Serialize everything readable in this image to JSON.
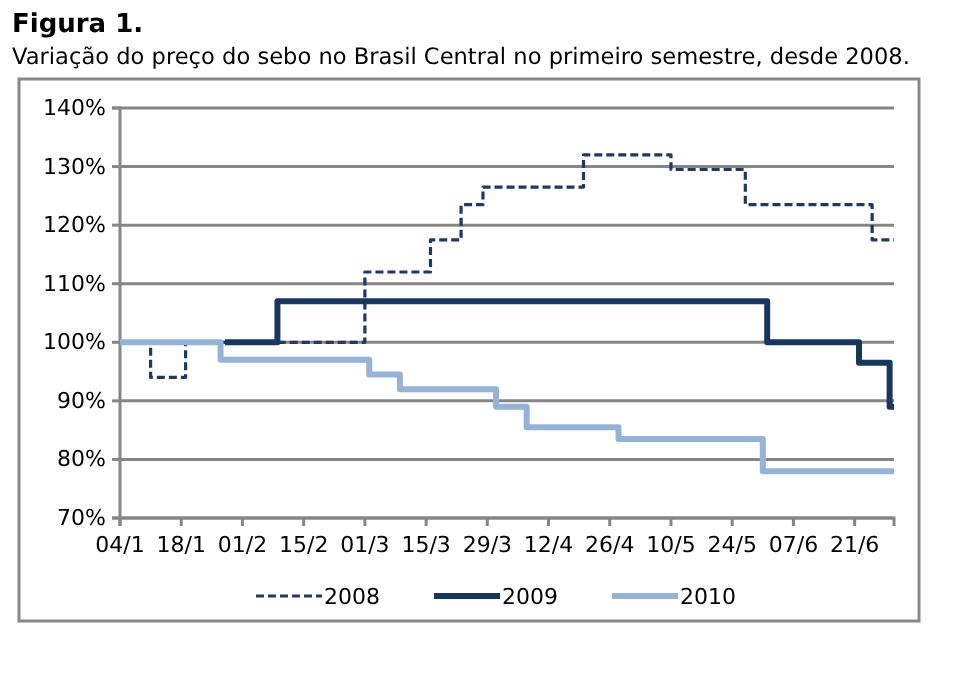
{
  "chart_data": {
    "type": "step",
    "title": "Figura 1.",
    "subtitle": "Variação do preço do sebo no Brasil Central no primeiro semestre, desde 2008.",
    "xlim": [
      "--01-04",
      "--06-30"
    ],
    "xticks": [
      {
        "value": "--01-04",
        "label": "04/1"
      },
      {
        "value": "--01-18",
        "label": "18/1"
      },
      {
        "value": "--02-01",
        "label": "01/2"
      },
      {
        "value": "--02-15",
        "label": "15/2"
      },
      {
        "value": "--03-01",
        "label": "01/3"
      },
      {
        "value": "--03-15",
        "label": "15/3"
      },
      {
        "value": "--03-29",
        "label": "29/3"
      },
      {
        "value": "--04-12",
        "label": "12/4"
      },
      {
        "value": "--04-26",
        "label": "26/4"
      },
      {
        "value": "--05-10",
        "label": "10/5"
      },
      {
        "value": "--05-24",
        "label": "24/5"
      },
      {
        "value": "--06-07",
        "label": "07/6"
      },
      {
        "value": "--06-21",
        "label": "21/6"
      }
    ],
    "ylim": [
      70,
      140
    ],
    "yticks": [
      {
        "value": 70,
        "label": "70%"
      },
      {
        "value": 80,
        "label": "80%"
      },
      {
        "value": 90,
        "label": "90%"
      },
      {
        "value": 100,
        "label": "100%"
      },
      {
        "value": 110,
        "label": "110%"
      },
      {
        "value": 120,
        "label": "120%"
      },
      {
        "value": 130,
        "label": "130%"
      },
      {
        "value": 140,
        "label": "140%"
      }
    ],
    "grid": "y",
    "legend": "bottom",
    "series": [
      {
        "name": "2008",
        "color": "#1f3864",
        "line_style": "dashed",
        "x": [
          "--01-04",
          "--01-11",
          "--01-19",
          "--03-01",
          "--03-16",
          "--03-23",
          "--03-28",
          "--04-20",
          "--05-10",
          "--05-27",
          "--06-25",
          "--06-30"
        ],
        "values": [
          100,
          94,
          100,
          112,
          117.5,
          123.5,
          126.5,
          132,
          129.5,
          123.5,
          117.5,
          117.5
        ]
      },
      {
        "name": "2009",
        "color": "#17375e",
        "line_style": "solid",
        "x": [
          "--01-28",
          "--02-09",
          "--06-01",
          "--06-22",
          "--06-29",
          "--06-30"
        ],
        "values": [
          100,
          107,
          100,
          96.5,
          89,
          89
        ]
      },
      {
        "name": "2010",
        "color": "#95b3d7",
        "line_style": "solid",
        "x": [
          "--01-04",
          "--01-27",
          "--03-02",
          "--03-09",
          "--03-31",
          "--04-07",
          "--04-28",
          "--05-31",
          "--06-30"
        ],
        "values": [
          100,
          97,
          94.5,
          92,
          89,
          85.5,
          83.5,
          78,
          78
        ]
      }
    ]
  }
}
